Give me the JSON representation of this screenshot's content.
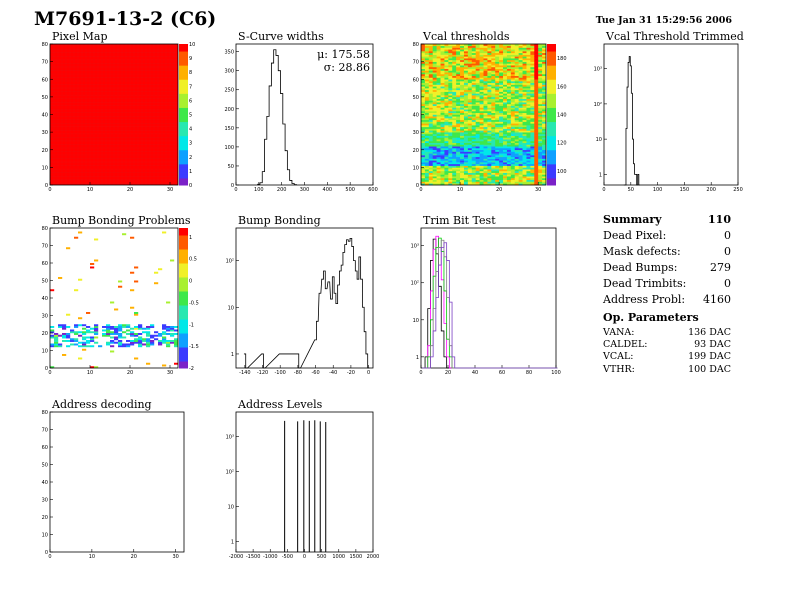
{
  "header": {
    "title": "M7691-13-2 (C6)",
    "timestamp": "Tue Jan 31 15:29:56 2006"
  },
  "colors": {
    "frame": "#000000",
    "palette": [
      "#7b21c8",
      "#3b3bff",
      "#0fa0ff",
      "#00e8e8",
      "#28e8b0",
      "#3ee84a",
      "#a8f030",
      "#f0f028",
      "#ffb000",
      "#ff5a00",
      "#ff0000"
    ],
    "trim_series": [
      "#000000",
      "#ff00ff",
      "#00cc00",
      "#808080",
      "#7b3fc4"
    ]
  },
  "chart_data": [
    {
      "id": "pixel-map",
      "type": "heatmap",
      "title": "Pixel Map",
      "xlim": [
        0,
        32
      ],
      "ylim": [
        0,
        80
      ],
      "xticks": [
        "0",
        "10",
        "20",
        "30"
      ],
      "yticks": [
        "0",
        "10",
        "20",
        "30",
        "40",
        "50",
        "60",
        "70",
        "80"
      ],
      "zlim": [
        0,
        10
      ],
      "zticks": [
        "0",
        "1",
        "2",
        "3",
        "4",
        "5",
        "6",
        "7",
        "8",
        "9",
        "10"
      ],
      "uniform_value": 10
    },
    {
      "id": "scurve-widths",
      "type": "bar",
      "title": "S-Curve widths",
      "xlim": [
        0,
        600
      ],
      "xticks": [
        "0",
        "100",
        "200",
        "300",
        "400",
        "500",
        "600"
      ],
      "ylim": [
        0,
        370
      ],
      "yticks": [
        "0",
        "50",
        "100",
        "150",
        "200",
        "250",
        "300",
        "350"
      ],
      "stats": [
        "μ: 175.58",
        "σ: 28.86"
      ],
      "x": [
        100,
        110,
        120,
        130,
        140,
        150,
        160,
        170,
        180,
        190,
        200,
        210,
        220,
        230,
        240,
        250,
        260
      ],
      "values": [
        2,
        6,
        35,
        120,
        180,
        260,
        320,
        355,
        340,
        300,
        240,
        160,
        90,
        40,
        12,
        4,
        1
      ]
    },
    {
      "id": "vcal-thresholds",
      "type": "heatmap",
      "title": "Vcal thresholds",
      "xlim": [
        0,
        32
      ],
      "ylim": [
        0,
        80
      ],
      "xticks": [
        "0",
        "10",
        "20",
        "30"
      ],
      "yticks": [
        "0",
        "10",
        "20",
        "30",
        "40",
        "50",
        "60",
        "70",
        "80"
      ],
      "zlim": [
        90,
        190
      ],
      "zticks": [
        "100",
        "120",
        "140",
        "160",
        "180"
      ],
      "notes": [
        "low-threshold band around rows 12-20",
        "high column near x=30"
      ]
    },
    {
      "id": "vcal-threshold-trimmed",
      "type": "line",
      "title": "Vcal Threshold Trimmed",
      "xlim": [
        0,
        250
      ],
      "xticks": [
        "0",
        "50",
        "100",
        "150",
        "200",
        "250"
      ],
      "yscale": "log",
      "yticks": [
        "1",
        "10",
        "10²",
        "10³"
      ],
      "ylim": [
        0.5,
        5000
      ],
      "x": [
        38,
        40,
        42,
        44,
        46,
        48,
        50,
        52,
        54,
        56,
        58,
        60,
        62,
        64,
        66
      ],
      "values": [
        0.5,
        0.5,
        20,
        300,
        1500,
        2200,
        1200,
        200,
        10,
        2,
        1,
        1,
        0.5,
        1,
        0.5
      ]
    },
    {
      "id": "bump-bonding-problems",
      "type": "heatmap",
      "title": "Bump Bonding Problems",
      "xlim": [
        0,
        32
      ],
      "ylim": [
        0,
        80
      ],
      "xticks": [
        "0",
        "10",
        "20",
        "30"
      ],
      "yticks": [
        "0",
        "10",
        "20",
        "30",
        "40",
        "50",
        "60",
        "70",
        "80"
      ],
      "zlim": [
        -2,
        1.2
      ],
      "zticks": [
        "-2",
        "-1.5",
        "-1",
        "-0.5",
        "0",
        "0.5",
        "1"
      ]
    },
    {
      "id": "bump-bonding",
      "type": "line",
      "title": "Bump Bonding",
      "xlim": [
        -150,
        5
      ],
      "xticks": [
        "-140",
        "-120",
        "-100",
        "-80",
        "-60",
        "-40",
        "-20",
        "0"
      ],
      "yscale": "log",
      "yticks": [
        "1",
        "10",
        "10²"
      ],
      "ylim": [
        0.5,
        500
      ],
      "x": [
        -140,
        -138,
        -120,
        -118,
        -100,
        -80,
        -78,
        -60,
        -58,
        -55,
        -52,
        -50,
        -48,
        -45,
        -42,
        -40,
        -38,
        -36,
        -34,
        -32,
        -30,
        -28,
        -26,
        -24,
        -22,
        -20,
        -18,
        -16,
        -14,
        -12,
        -10,
        -8,
        -6,
        -4,
        -2,
        0
      ],
      "values": [
        1,
        0.5,
        1,
        0.5,
        1,
        1,
        0.5,
        2,
        5,
        20,
        40,
        60,
        25,
        35,
        15,
        45,
        20,
        12,
        30,
        60,
        80,
        150,
        220,
        280,
        260,
        300,
        200,
        100,
        60,
        40,
        120,
        40,
        10,
        3,
        1,
        0.5
      ]
    },
    {
      "id": "trim-bit-test",
      "type": "line",
      "title": "Trim Bit Test",
      "xlim": [
        0,
        100
      ],
      "xticks": [
        "0",
        "20",
        "40",
        "60",
        "80",
        "100"
      ],
      "yscale": "log",
      "yticks": [
        "1",
        "10",
        "10²",
        "10³"
      ],
      "ylim": [
        0.5,
        3000
      ],
      "x": [
        2,
        4,
        6,
        8,
        10,
        12,
        14,
        16,
        18,
        20,
        22,
        24,
        26,
        28,
        30,
        100
      ],
      "series": [
        {
          "values": [
            0.5,
            1,
            20,
            400,
            1500,
            600,
            80,
            5,
            1,
            0.5,
            0.5,
            0.5,
            0.5,
            0.5,
            0.5,
            0.5
          ]
        },
        {
          "values": [
            0.5,
            0.5,
            2,
            60,
            800,
            1800,
            900,
            120,
            8,
            1,
            0.5,
            0.5,
            0.5,
            0.5,
            0.5,
            0.5
          ]
        },
        {
          "values": [
            0.5,
            0.5,
            1,
            10,
            150,
            900,
            1600,
            700,
            60,
            3,
            1,
            0.5,
            0.5,
            0.5,
            0.5,
            0.5
          ]
        },
        {
          "values": [
            0.5,
            0.5,
            0.5,
            2,
            20,
            200,
            900,
            1400,
            500,
            40,
            2,
            0.5,
            0.5,
            0.5,
            0.5,
            0.5
          ]
        },
        {
          "values": [
            0.5,
            0.5,
            0.5,
            1,
            5,
            40,
            300,
            900,
            1200,
            400,
            30,
            1,
            0.5,
            0.5,
            0.5,
            0.5
          ]
        }
      ]
    },
    {
      "id": "address-decoding",
      "type": "heatmap",
      "title": "Address decoding",
      "xlim": [
        0,
        32
      ],
      "ylim": [
        0,
        80
      ],
      "xticks": [
        "0",
        "10",
        "20",
        "30"
      ],
      "yticks": [
        "0",
        "10",
        "20",
        "30",
        "40",
        "50",
        "60",
        "70",
        "80"
      ]
    },
    {
      "id": "address-levels",
      "type": "bar",
      "title": "Address Levels",
      "xlim": [
        -2000,
        2000
      ],
      "xticks": [
        "-2000",
        "-1500",
        "-1000",
        "-500",
        "0",
        "500",
        "1000",
        "1500",
        "2000"
      ],
      "yscale": "log",
      "yticks": [
        "1",
        "10",
        "10²",
        "10³"
      ],
      "ylim": [
        0.5,
        5000
      ],
      "x": [
        -580,
        -200,
        -20,
        140,
        300,
        460,
        620
      ],
      "values": [
        2800,
        2700,
        2900,
        2800,
        2900,
        2700,
        2600
      ]
    }
  ],
  "summary": {
    "heading": "Summary",
    "total": "110",
    "rows": [
      {
        "label": "Dead Pixel:",
        "value": "0"
      },
      {
        "label": "Mask defects:",
        "value": "0"
      },
      {
        "label": "Dead Bumps:",
        "value": "279"
      },
      {
        "label": "Dead Trimbits:",
        "value": "0"
      },
      {
        "label": "Address Probl:",
        "value": "4160"
      }
    ]
  },
  "op_parameters": {
    "heading": "Op. Parameters",
    "rows": [
      {
        "label": "VANA:",
        "value": "136 DAC"
      },
      {
        "label": "CALDEL:",
        "value": "93 DAC"
      },
      {
        "label": "VCAL:",
        "value": "199 DAC"
      },
      {
        "label": "VTHR:",
        "value": "100 DAC"
      }
    ]
  }
}
